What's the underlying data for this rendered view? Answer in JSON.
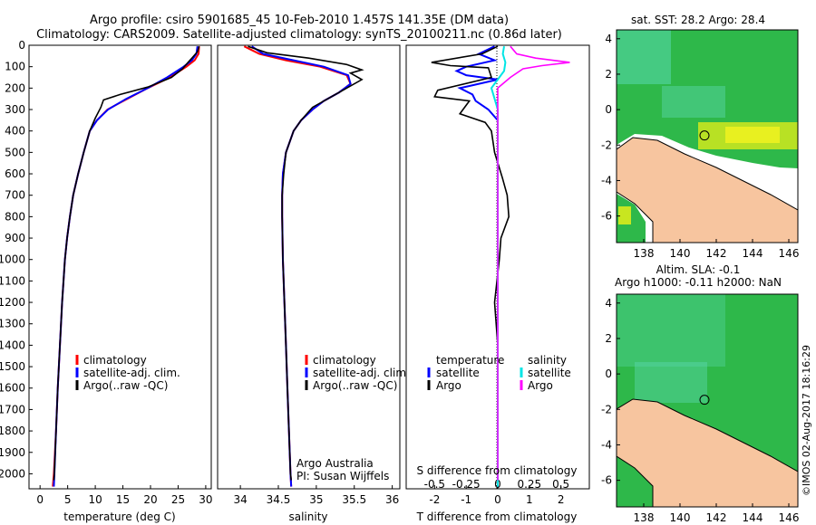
{
  "title": {
    "line1": "Argo profile: csiro 5901685_45 10-Feb-2010 1.457S 141.35E (DM data)",
    "line2": "Climatology: CARS2009. Satellite-adjusted climatology: synTS_20100211.nc (0.86d later)"
  },
  "colors": {
    "climatology": "#ff0000",
    "satellite": "#0000ff",
    "argo": "#000000",
    "sal_satellite": "#00e5e5",
    "sal_argo": "#ff00ff",
    "land": "#f7c59f",
    "ocean": "#2eb84a",
    "warm": "#c8e620",
    "cool": "#5ad8b0"
  },
  "chart_data": [
    {
      "type": "line",
      "name": "temperature-profile",
      "xlabel": "temperature (deg C)",
      "ylabel": "depth",
      "xlim": [
        -2,
        31
      ],
      "ylim": [
        2070,
        0
      ],
      "xticks": [
        "0",
        "5",
        "10",
        "15",
        "20",
        "25",
        "30"
      ],
      "xtick_values": [
        0,
        5,
        10,
        15,
        20,
        25,
        30
      ],
      "yticks": [
        "0",
        "100",
        "200",
        "300",
        "400",
        "500",
        "600",
        "700",
        "800",
        "900",
        "1000",
        "1100",
        "1200",
        "1300",
        "1400",
        "1500",
        "1600",
        "1700",
        "1800",
        "1900",
        "2000"
      ],
      "ytick_values": [
        0,
        100,
        200,
        300,
        400,
        500,
        600,
        700,
        800,
        900,
        1000,
        1100,
        1200,
        1300,
        1400,
        1500,
        1600,
        1700,
        1800,
        1900,
        2000
      ],
      "legend": [
        "climatology",
        "satellite-adj. clim.",
        "Argo(..raw -QC)"
      ],
      "series": [
        {
          "name": "climatology",
          "points": [
            [
              28.8,
              5
            ],
            [
              28.7,
              40
            ],
            [
              28.0,
              70
            ],
            [
              26.5,
              100
            ],
            [
              23.5,
              150
            ],
            [
              19.5,
              200
            ],
            [
              15.8,
              250
            ],
            [
              12.2,
              300
            ],
            [
              10.3,
              350
            ],
            [
              9.0,
              400
            ],
            [
              7.9,
              500
            ],
            [
              6.9,
              600
            ],
            [
              6.0,
              700
            ],
            [
              5.4,
              800
            ],
            [
              4.9,
              900
            ],
            [
              4.5,
              1000
            ],
            [
              4.0,
              1200
            ],
            [
              3.6,
              1400
            ],
            [
              3.2,
              1600
            ],
            [
              2.9,
              1800
            ],
            [
              2.5,
              2000
            ],
            [
              2.3,
              2060
            ]
          ]
        },
        {
          "name": "satellite",
          "points": [
            [
              28.5,
              5
            ],
            [
              28.3,
              40
            ],
            [
              27.5,
              70
            ],
            [
              26.0,
              100
            ],
            [
              23.0,
              150
            ],
            [
              19.5,
              200
            ],
            [
              15.6,
              250
            ],
            [
              12.3,
              300
            ],
            [
              10.3,
              350
            ],
            [
              9.0,
              400
            ],
            [
              7.9,
              500
            ],
            [
              6.9,
              600
            ],
            [
              6.0,
              700
            ],
            [
              5.4,
              800
            ],
            [
              4.9,
              900
            ],
            [
              4.5,
              1000
            ],
            [
              4.0,
              1200
            ],
            [
              3.6,
              1400
            ],
            [
              3.2,
              1600
            ],
            [
              2.9,
              1800
            ],
            [
              2.6,
              2000
            ],
            [
              2.5,
              2060
            ]
          ]
        },
        {
          "name": "argo",
          "points": [
            [
              28.8,
              5
            ],
            [
              28.5,
              30
            ],
            [
              27.5,
              60
            ],
            [
              26.8,
              80
            ],
            [
              25.8,
              110
            ],
            [
              23.8,
              150
            ],
            [
              19.5,
              195
            ],
            [
              14.5,
              230
            ],
            [
              11.5,
              255
            ],
            [
              11.0,
              290
            ],
            [
              10.0,
              340
            ],
            [
              9.0,
              400
            ],
            [
              7.9,
              500
            ],
            [
              6.9,
              600
            ],
            [
              6.0,
              700
            ],
            [
              5.4,
              800
            ],
            [
              4.9,
              900
            ],
            [
              4.5,
              1000
            ],
            [
              4.0,
              1200
            ],
            [
              3.6,
              1400
            ],
            [
              3.2,
              1600
            ],
            [
              2.9,
              1800
            ],
            [
              2.6,
              2000
            ],
            [
              2.5,
              2030
            ]
          ]
        }
      ]
    },
    {
      "type": "line",
      "name": "salinity-profile",
      "xlabel": "salinity",
      "xlim": [
        33.7,
        36.1
      ],
      "ylim": [
        2070,
        0
      ],
      "xticks": [
        "34",
        "34.5",
        "35",
        "35.5",
        "36"
      ],
      "xtick_values": [
        34,
        34.5,
        35,
        35.5,
        36
      ],
      "legend": [
        "climatology",
        "satellite-adj. clim.",
        "Argo(..raw -QC)"
      ],
      "annotation": [
        "Argo Australia",
        "PI: Susan Wijffels"
      ],
      "series": [
        {
          "name": "climatology",
          "points": [
            [
              34.05,
              5
            ],
            [
              34.25,
              40
            ],
            [
              34.6,
              70
            ],
            [
              35.05,
              100
            ],
            [
              35.4,
              140
            ],
            [
              35.45,
              180
            ],
            [
              35.3,
              220
            ],
            [
              35.1,
              260
            ],
            [
              34.95,
              300
            ],
            [
              34.8,
              350
            ],
            [
              34.7,
              400
            ],
            [
              34.6,
              500
            ],
            [
              34.56,
              600
            ],
            [
              34.55,
              700
            ],
            [
              34.55,
              800
            ],
            [
              34.56,
              1000
            ],
            [
              34.58,
              1200
            ],
            [
              34.6,
              1400
            ],
            [
              34.62,
              1600
            ],
            [
              34.64,
              1800
            ],
            [
              34.66,
              2000
            ],
            [
              34.67,
              2060
            ]
          ]
        },
        {
          "name": "satellite",
          "points": [
            [
              34.15,
              5
            ],
            [
              34.3,
              40
            ],
            [
              34.7,
              70
            ],
            [
              35.1,
              100
            ],
            [
              35.42,
              140
            ],
            [
              35.45,
              180
            ],
            [
              35.3,
              220
            ],
            [
              35.1,
              260
            ],
            [
              34.95,
              300
            ],
            [
              34.8,
              350
            ],
            [
              34.7,
              400
            ],
            [
              34.6,
              500
            ],
            [
              34.56,
              600
            ],
            [
              34.55,
              700
            ],
            [
              34.55,
              800
            ],
            [
              34.56,
              1000
            ],
            [
              34.58,
              1200
            ],
            [
              34.6,
              1400
            ],
            [
              34.62,
              1600
            ],
            [
              34.64,
              1800
            ],
            [
              34.66,
              2000
            ],
            [
              34.67,
              2060
            ]
          ]
        },
        {
          "name": "argo",
          "points": [
            [
              34.1,
              5
            ],
            [
              34.35,
              35
            ],
            [
              34.9,
              60
            ],
            [
              35.4,
              90
            ],
            [
              35.6,
              115
            ],
            [
              35.45,
              130
            ],
            [
              35.6,
              160
            ],
            [
              35.4,
              200
            ],
            [
              35.2,
              240
            ],
            [
              34.95,
              290
            ],
            [
              34.8,
              350
            ],
            [
              34.7,
              400
            ],
            [
              34.6,
              500
            ],
            [
              34.57,
              600
            ],
            [
              34.55,
              700
            ],
            [
              34.55,
              800
            ],
            [
              34.56,
              1000
            ],
            [
              34.58,
              1200
            ],
            [
              34.6,
              1400
            ],
            [
              34.62,
              1600
            ],
            [
              34.64,
              1800
            ],
            [
              34.66,
              2000
            ],
            [
              34.67,
              2030
            ]
          ]
        }
      ]
    },
    {
      "type": "line",
      "name": "difference-profile",
      "xlabel": "T difference from climatology",
      "xlabel_top": "S difference from climatology",
      "xlim_T": [
        -2.9,
        2.9
      ],
      "xticks_T": [
        "-2",
        "-1",
        "0",
        "1",
        "2"
      ],
      "xtick_values_T": [
        -2,
        -1,
        0,
        1,
        2
      ],
      "xlim_S": [
        -0.725,
        0.725
      ],
      "xticks_S": [
        "-0.5",
        "-0.25",
        "0",
        "0.25",
        "0.5"
      ],
      "xtick_values_S": [
        -0.5,
        -0.25,
        0,
        0.25,
        0.5
      ],
      "ylim": [
        2070,
        0
      ],
      "legend_temperature": {
        "header": "temperature",
        "items": [
          "satellite",
          "Argo"
        ]
      },
      "legend_salinity": {
        "header": "salinity",
        "items": [
          "satellite",
          "Argo"
        ]
      },
      "series": [
        {
          "name": "T satellite",
          "axis": "T",
          "points": [
            [
              -0.1,
              5
            ],
            [
              -0.6,
              40
            ],
            [
              -0.1,
              70
            ],
            [
              -1.0,
              100
            ],
            [
              -1.3,
              120
            ],
            [
              -1.0,
              140
            ],
            [
              0.0,
              160
            ],
            [
              -0.9,
              190
            ],
            [
              -1.2,
              200
            ],
            [
              -0.8,
              230
            ],
            [
              -0.7,
              260
            ],
            [
              -0.3,
              300
            ],
            [
              0.0,
              350
            ],
            [
              0.0,
              400
            ],
            [
              0.0,
              600
            ],
            [
              0.0,
              1000
            ],
            [
              0.0,
              2060
            ]
          ]
        },
        {
          "name": "T Argo",
          "axis": "T",
          "points": [
            [
              0.0,
              5
            ],
            [
              -0.5,
              40
            ],
            [
              -2.1,
              80
            ],
            [
              -1.5,
              95
            ],
            [
              -0.3,
              105
            ],
            [
              -0.2,
              150
            ],
            [
              -1.9,
              210
            ],
            [
              -2.0,
              240
            ],
            [
              -0.9,
              260
            ],
            [
              -1.2,
              320
            ],
            [
              -0.4,
              360
            ],
            [
              -0.2,
              400
            ],
            [
              -0.1,
              500
            ],
            [
              0.15,
              620
            ],
            [
              0.3,
              700
            ],
            [
              0.35,
              800
            ],
            [
              0.1,
              900
            ],
            [
              0.05,
              1000
            ],
            [
              -0.1,
              1200
            ],
            [
              0.0,
              1400
            ],
            [
              0.0,
              2030
            ]
          ]
        },
        {
          "name": "S satellite",
          "axis": "S",
          "points": [
            [
              0.05,
              5
            ],
            [
              0.04,
              40
            ],
            [
              0.06,
              80
            ],
            [
              0.05,
              120
            ],
            [
              -0.05,
              200
            ],
            [
              0.0,
              300
            ],
            [
              0.0,
              400
            ],
            [
              0.0,
              1000
            ],
            [
              0.0,
              2060
            ]
          ]
        },
        {
          "name": "S Argo",
          "axis": "S",
          "points": [
            [
              0.1,
              5
            ],
            [
              0.15,
              40
            ],
            [
              0.3,
              60
            ],
            [
              0.57,
              80
            ],
            [
              0.35,
              95
            ],
            [
              0.2,
              110
            ],
            [
              0.1,
              150
            ],
            [
              0.0,
              200
            ],
            [
              0.0,
              400
            ],
            [
              0.0,
              2030
            ]
          ]
        }
      ]
    },
    {
      "type": "heatmap",
      "name": "sst-map",
      "title": "sat. SST: 28.2  Argo: 28.4",
      "xlim": [
        136.5,
        146.5
      ],
      "ylim": [
        -7.5,
        4.5
      ],
      "xticks": [
        "138",
        "140",
        "142",
        "144",
        "146"
      ],
      "xtick_values": [
        138,
        140,
        142,
        144,
        146
      ],
      "yticks": [
        "4",
        "2",
        "0",
        "-2",
        "-4",
        "-6"
      ],
      "ytick_values": [
        4,
        2,
        0,
        -2,
        -4,
        -6
      ],
      "argo_position": [
        141.35,
        -1.457
      ]
    },
    {
      "type": "heatmap",
      "name": "sla-map",
      "title_line1": "Altim. SLA: -0.1",
      "title_line2": "Argo h1000: -0.11  h2000: NaN",
      "xlim": [
        136.5,
        146.5
      ],
      "ylim": [
        -7.5,
        4.5
      ],
      "xticks": [
        "138",
        "140",
        "142",
        "144",
        "146"
      ],
      "xtick_values": [
        138,
        140,
        142,
        144,
        146
      ],
      "yticks": [
        "4",
        "2",
        "0",
        "-2",
        "-4",
        "-6"
      ],
      "ytick_values": [
        4,
        2,
        0,
        -2,
        -4,
        -6
      ],
      "argo_position": [
        141.35,
        -1.457
      ]
    }
  ],
  "footer": {
    "credit": "©IMOS 02-Aug-2017 18:16:29"
  }
}
